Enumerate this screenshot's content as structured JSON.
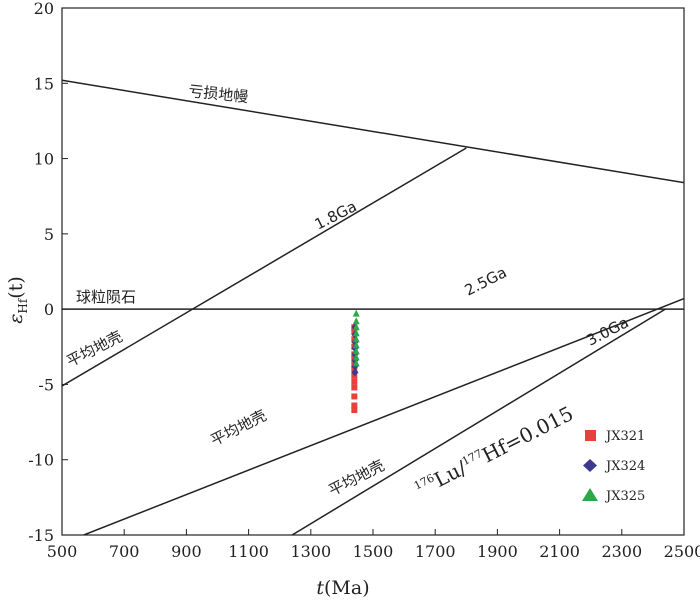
{
  "chart_data": {
    "type": "scatter",
    "title": "",
    "xlabel": {
      "italic": "t",
      "rest": "(Ma)"
    },
    "ylabel": {
      "greek": "ε",
      "sub": "Hf",
      "rest": "(t)"
    },
    "xlim": [
      500,
      2500
    ],
    "ylim": [
      -15,
      20
    ],
    "xticks": [
      500,
      700,
      900,
      1100,
      1300,
      1500,
      1700,
      1900,
      2100,
      2300,
      2500
    ],
    "yticks": [
      -15,
      -10,
      -5,
      0,
      5,
      10,
      15,
      20
    ],
    "grid": false,
    "legend_position": "bottom-right",
    "reference_lines": [
      {
        "name": "depleted_mantle",
        "x": [
          500,
          2500
        ],
        "y": [
          15.2,
          8.4
        ]
      },
      {
        "name": "chondrite",
        "x": [
          500,
          2500
        ],
        "y": [
          0,
          0
        ]
      },
      {
        "name": "crust_1.8Ga",
        "x": [
          500,
          1800
        ],
        "y": [
          -5.1,
          10.7
        ]
      },
      {
        "name": "crust_2.5Ga",
        "x": [
          570,
          2500
        ],
        "y": [
          -15,
          0.7
        ]
      },
      {
        "name": "crust_3.0Ga",
        "x": [
          1240,
          2440
        ],
        "y": [
          -15,
          0
        ]
      }
    ],
    "series": [
      {
        "name": "JX321",
        "color": "#e8413c",
        "marker": "square",
        "x": [
          1440,
          1440,
          1440,
          1440,
          1440,
          1440,
          1440,
          1440,
          1440,
          1440,
          1440,
          1440,
          1440,
          1440
        ],
        "y": [
          -1.5,
          -2.0,
          -2.5,
          -3.0,
          -3.3,
          -3.7,
          -4.0,
          -4.4,
          -4.8,
          -5.2,
          -5.8,
          -6.4,
          -6.7,
          -1.2
        ]
      },
      {
        "name": "JX324",
        "color": "#3b3a8e",
        "marker": "diamond",
        "x": [
          1442,
          1442,
          1442,
          1442,
          1442,
          1442,
          1442,
          1442
        ],
        "y": [
          -1.2,
          -1.7,
          -2.2,
          -2.6,
          -3.0,
          -3.4,
          -3.8,
          -4.2
        ]
      },
      {
        "name": "JX325",
        "color": "#2ba84a",
        "marker": "triangle",
        "x": [
          1446,
          1446,
          1446,
          1446,
          1446,
          1446,
          1446,
          1446,
          1446
        ],
        "y": [
          -0.3,
          -0.8,
          -1.2,
          -1.6,
          -2.0,
          -2.4,
          -2.8,
          -3.2,
          -3.6
        ]
      }
    ]
  },
  "annotations": {
    "depleted_mantle": "亏损地幔",
    "chondrite": "球粒陨石",
    "age_1_8": "1.8Ga",
    "age_2_5": "2.5Ga",
    "age_3_0": "3.0Ga",
    "avg_crust_1": "平均地壳",
    "avg_crust_2": "平均地壳",
    "avg_crust_3": "平均地壳",
    "lu_hf_sup1": "176",
    "lu_hf_mid": "Lu/",
    "lu_hf_sup2": "177",
    "lu_hf_end": "Hf=0.015"
  },
  "colors": {
    "axis": "#222222",
    "line": "#222222"
  }
}
